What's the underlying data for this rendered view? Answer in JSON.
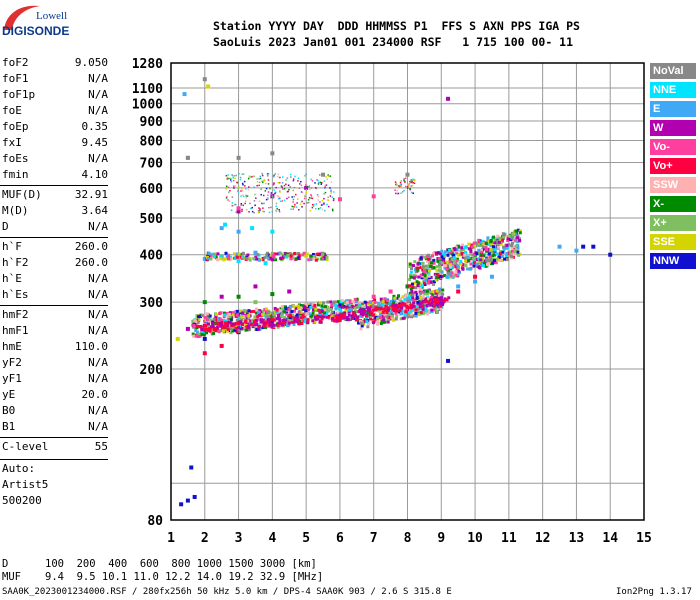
{
  "logo": {
    "top": "Lowell",
    "bottom": "DIGISONDE"
  },
  "header": {
    "line1": "Station YYYY DAY  DDD HHMMSS P1  FFS S AXN PPS IGA PS",
    "line2": "SaoLuis 2023 Jan01 001 234000 RSF   1 715 100 00- 11"
  },
  "params_groups": [
    [
      {
        "name": "foF2",
        "value": "9.050"
      },
      {
        "name": "foF1",
        "value": "N/A"
      },
      {
        "name": "foF1p",
        "value": "N/A"
      },
      {
        "name": "foE",
        "value": "N/A"
      },
      {
        "name": "foEp",
        "value": "0.35"
      },
      {
        "name": "fxI",
        "value": "9.45"
      },
      {
        "name": "foEs",
        "value": "N/A"
      },
      {
        "name": "fmin",
        "value": "4.10"
      }
    ],
    [
      {
        "name": "MUF(D)",
        "value": "32.91"
      },
      {
        "name": "M(D)",
        "value": "3.64"
      },
      {
        "name": "D",
        "value": "N/A"
      }
    ],
    [
      {
        "name": "h`F",
        "value": "260.0"
      },
      {
        "name": "h`F2",
        "value": "260.0"
      },
      {
        "name": "h`E",
        "value": "N/A"
      },
      {
        "name": "h`Es",
        "value": "N/A"
      }
    ],
    [
      {
        "name": "hmF2",
        "value": "N/A"
      },
      {
        "name": "hmF1",
        "value": "N/A"
      },
      {
        "name": "hmE",
        "value": "110.0"
      },
      {
        "name": "yF2",
        "value": "N/A"
      },
      {
        "name": "yF1",
        "value": "N/A"
      },
      {
        "name": "yE",
        "value": "20.0"
      },
      {
        "name": "B0",
        "value": "N/A"
      },
      {
        "name": "B1",
        "value": "N/A"
      }
    ],
    [
      {
        "name": "C-level",
        "value": "55"
      }
    ]
  ],
  "auto_block": {
    "line1": "Auto:",
    "line2": "Artist5",
    "line3": "500200"
  },
  "legend": [
    {
      "label": "NoVal",
      "color": "#888888"
    },
    {
      "label": "NNE",
      "color": "#00e5ff"
    },
    {
      "label": "E",
      "color": "#3fa9f5"
    },
    {
      "label": "W",
      "color": "#b000b0"
    },
    {
      "label": "Vo-",
      "color": "#ff3fa0"
    },
    {
      "label": "Vo+",
      "color": "#ff0040"
    },
    {
      "label": "SSW",
      "color": "#ffb0b0"
    },
    {
      "label": "X-",
      "color": "#008a00"
    },
    {
      "label": "X+",
      "color": "#7fbf5f"
    },
    {
      "label": "SSE",
      "color": "#d4d400"
    },
    {
      "label": "NNW",
      "color": "#1010d0"
    }
  ],
  "chart_data": {
    "type": "scatter",
    "title": "",
    "xlabel": "",
    "ylabel": "",
    "xlim": [
      1,
      15
    ],
    "ylim": [
      80,
      1280
    ],
    "y_scale": "log",
    "grid": true,
    "legend_position": "right",
    "x_ticks": [
      1,
      2,
      3,
      4,
      5,
      6,
      7,
      8,
      9,
      10,
      11,
      12,
      13,
      14,
      15
    ],
    "y_ticks": [
      80,
      100,
      200,
      300,
      400,
      500,
      600,
      700,
      800,
      900,
      1000,
      1100,
      1280
    ],
    "y_tick_labels_shown": [
      80,
      200,
      300,
      400,
      500,
      600,
      700,
      800,
      900,
      1000,
      1100,
      1280
    ],
    "series": [
      {
        "name": "W",
        "color": "#b000b0",
        "points": [
          [
            1.5,
            255
          ],
          [
            2.0,
            260
          ],
          [
            2.5,
            262
          ],
          [
            3.0,
            265
          ],
          [
            3.5,
            268
          ],
          [
            4.0,
            270
          ],
          [
            4.5,
            275
          ],
          [
            5.0,
            280
          ],
          [
            5.5,
            285
          ],
          [
            6.0,
            290
          ],
          [
            6.5,
            295
          ],
          [
            7.0,
            300
          ],
          [
            3.0,
            520
          ],
          [
            4.0,
            570
          ],
          [
            5.0,
            600
          ],
          [
            2.5,
            310
          ],
          [
            3.5,
            330
          ],
          [
            4.5,
            320
          ],
          [
            9.2,
            1030
          ]
        ]
      },
      {
        "name": "Vo+",
        "color": "#ff0040",
        "points": [
          [
            5.5,
            275
          ],
          [
            6.0,
            272
          ],
          [
            6.5,
            270
          ],
          [
            7.0,
            268
          ],
          [
            7.5,
            272
          ],
          [
            8.0,
            280
          ],
          [
            8.5,
            290
          ],
          [
            9.0,
            300
          ],
          [
            9.5,
            320
          ],
          [
            10.0,
            350
          ],
          [
            2.0,
            220
          ],
          [
            2.5,
            230
          ]
        ]
      },
      {
        "name": "Vo-",
        "color": "#ff3fa0",
        "points": [
          [
            6.5,
            300
          ],
          [
            7.0,
            310
          ],
          [
            7.5,
            320
          ],
          [
            8.0,
            330
          ],
          [
            8.5,
            350
          ],
          [
            9.0,
            380
          ],
          [
            3.0,
            530
          ],
          [
            6.0,
            560
          ],
          [
            7.0,
            570
          ]
        ]
      },
      {
        "name": "X-",
        "color": "#008a00",
        "points": [
          [
            8.0,
            330
          ],
          [
            8.5,
            360
          ],
          [
            9.0,
            390
          ],
          [
            9.5,
            420
          ],
          [
            10.0,
            400
          ],
          [
            10.5,
            380
          ],
          [
            2.0,
            300
          ],
          [
            3.0,
            310
          ],
          [
            4.0,
            315
          ]
        ]
      },
      {
        "name": "X+",
        "color": "#7fbf5f",
        "points": [
          [
            8.5,
            340
          ],
          [
            9.0,
            360
          ],
          [
            10.0,
            390
          ],
          [
            11.0,
            400
          ],
          [
            3.5,
            300
          ]
        ]
      },
      {
        "name": "E",
        "color": "#3fa9f5",
        "points": [
          [
            2.0,
            390
          ],
          [
            2.5,
            395
          ],
          [
            3.0,
            400
          ],
          [
            3.5,
            405
          ],
          [
            4.0,
            395
          ],
          [
            2.5,
            470
          ],
          [
            3.0,
            460
          ],
          [
            9.5,
            330
          ],
          [
            10.0,
            340
          ],
          [
            10.5,
            350
          ],
          [
            12.5,
            420
          ],
          [
            13.0,
            410
          ],
          [
            1.4,
            1060
          ]
        ]
      },
      {
        "name": "NNE",
        "color": "#00e5ff",
        "points": [
          [
            2.2,
            400
          ],
          [
            3.0,
            385
          ],
          [
            3.8,
            380
          ],
          [
            2.6,
            480
          ],
          [
            3.4,
            470
          ],
          [
            4.0,
            460
          ]
        ]
      },
      {
        "name": "SSE",
        "color": "#d4d400",
        "points": [
          [
            3.0,
            400
          ],
          [
            4.0,
            395
          ],
          [
            4.5,
            400
          ],
          [
            5.0,
            398
          ],
          [
            5.5,
            396
          ],
          [
            1.5,
            720
          ],
          [
            2.1,
            1110
          ],
          [
            1.2,
            240
          ]
        ]
      },
      {
        "name": "NNW",
        "color": "#1010d0",
        "points": [
          [
            1.3,
            88
          ],
          [
            1.5,
            90
          ],
          [
            1.7,
            92
          ],
          [
            1.6,
            110
          ],
          [
            9.2,
            210
          ],
          [
            13.2,
            420
          ],
          [
            13.5,
            420
          ],
          [
            14.0,
            400
          ],
          [
            2.0,
            240
          ],
          [
            3.0,
            250
          ]
        ]
      },
      {
        "name": "SSW",
        "color": "#ffb0b0",
        "points": [
          [
            6.5,
            300
          ],
          [
            7.5,
            290
          ],
          [
            8.0,
            310
          ]
        ]
      },
      {
        "name": "NoVal",
        "color": "#888888",
        "points": [
          [
            3.0,
            720
          ],
          [
            4.0,
            740
          ],
          [
            2.0,
            1160
          ],
          [
            1.5,
            720
          ],
          [
            5.5,
            650
          ],
          [
            8.0,
            650
          ]
        ]
      }
    ]
  },
  "bottom": {
    "row1_label": "D",
    "row1_values": "100  200  400  600  800 1000 1500 3000 [km]",
    "row2_label": "MUF",
    "row2_values": "9.4  9.5 10.1 11.0 12.2 14.0 19.2 32.9 [MHz]",
    "footer_left": "SAA0K_2023001234000.RSF / 280fx256h 50 kHz 5.0 km / DPS-4 SAA0K 903 / 2.6 S 315.8 E",
    "footer_right": "Ion2Png 1.3.17"
  }
}
